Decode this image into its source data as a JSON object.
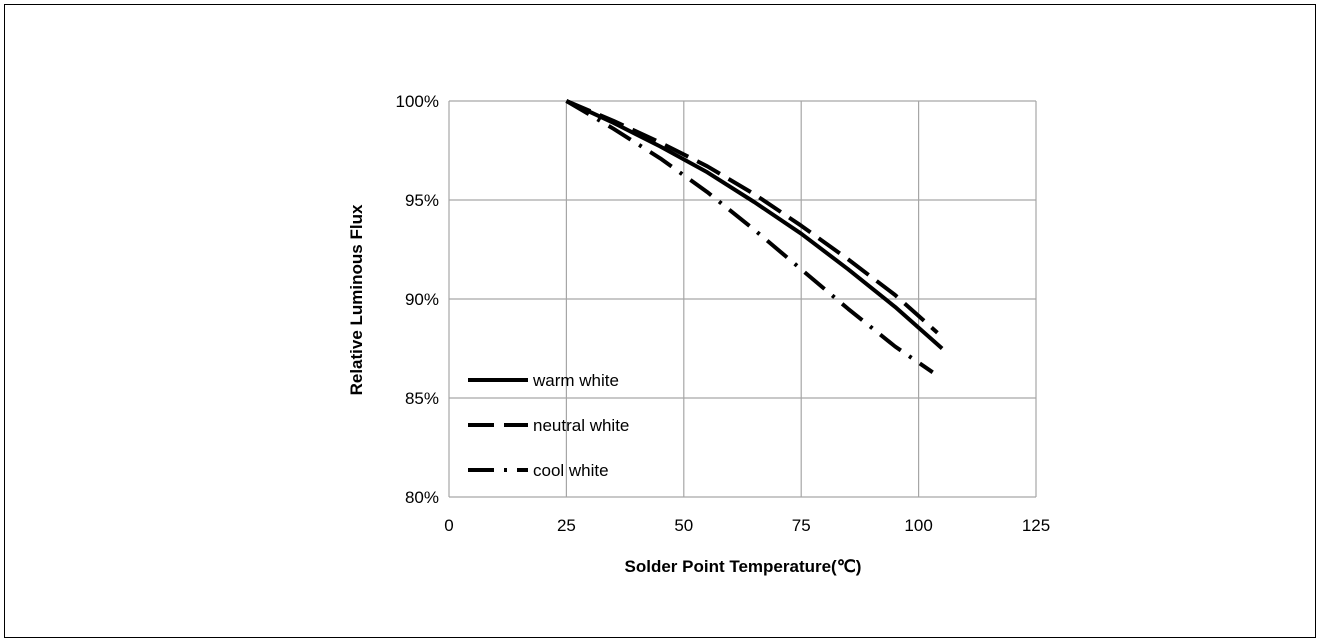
{
  "chart_data": {
    "type": "line",
    "xlabel": "Solder Point Temperature(℃)",
    "ylabel": "Relative Luminous Flux",
    "xlim": [
      0,
      125
    ],
    "ylim": [
      80,
      100
    ],
    "x_ticks": [
      "0",
      "25",
      "50",
      "75",
      "100",
      "125"
    ],
    "y_ticks": [
      "80%",
      "85%",
      "90%",
      "95%",
      "100%"
    ],
    "x_tick_values": [
      0,
      25,
      50,
      75,
      100,
      125
    ],
    "y_tick_values": [
      80,
      85,
      90,
      95,
      100
    ],
    "grid": true,
    "legend_position": "bottom-left",
    "series": [
      {
        "name": "warm white",
        "style": "solid",
        "x": [
          25,
          35,
          45,
          55,
          65,
          75,
          85,
          95,
          105
        ],
        "y": [
          100,
          98.9,
          97.7,
          96.4,
          94.9,
          93.3,
          91.5,
          89.6,
          87.5
        ]
      },
      {
        "name": "neutral white",
        "style": "dash",
        "x": [
          25,
          35,
          45,
          55,
          65,
          75,
          85,
          95,
          104
        ],
        "y": [
          100,
          99.0,
          97.9,
          96.7,
          95.3,
          93.7,
          92.0,
          90.2,
          88.3
        ]
      },
      {
        "name": "cool white",
        "style": "dash-dot",
        "x": [
          25,
          35,
          45,
          55,
          65,
          75,
          85,
          95,
          103
        ],
        "y": [
          100,
          98.6,
          97.1,
          95.4,
          93.5,
          91.5,
          89.5,
          87.6,
          86.3
        ]
      }
    ]
  },
  "colors": {
    "line": "#000000",
    "grid": "#a6a6a6",
    "axis": "#a6a6a6"
  }
}
